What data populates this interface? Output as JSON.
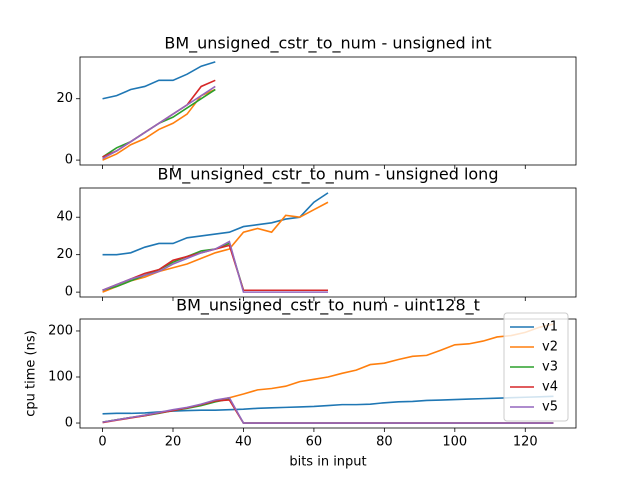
{
  "chart_data": [
    {
      "type": "line",
      "title": "BM_unsigned_cstr_to_num - unsigned int",
      "x": [
        0,
        4,
        8,
        12,
        16,
        20,
        24,
        28,
        32
      ],
      "series": [
        {
          "color": "#1f77b4",
          "values": [
            20,
            21,
            23,
            24,
            26,
            26,
            28,
            30.6,
            32
          ]
        },
        {
          "color": "#ff7f0e",
          "values": [
            0,
            2,
            5,
            7,
            10,
            12,
            15,
            21,
            23
          ]
        },
        {
          "color": "#2ca02c",
          "values": [
            1,
            4,
            6,
            9,
            12,
            14,
            17,
            20,
            23
          ]
        },
        {
          "color": "#d62728",
          "values": [
            1,
            3,
            6,
            9,
            12,
            15,
            18,
            24,
            26
          ]
        },
        {
          "color": "#9467bd",
          "values": [
            0.5,
            3,
            6,
            9,
            12,
            15,
            18,
            21,
            24
          ]
        }
      ],
      "xlim": [
        -6.4,
        134.4
      ],
      "ylim": [
        -1.6,
        33.6
      ],
      "xticks": [
        0,
        20,
        40,
        60,
        80,
        100,
        120
      ],
      "yticks": [
        0,
        20
      ]
    },
    {
      "type": "line",
      "title": "BM_unsigned_cstr_to_num - unsigned long",
      "x": [
        0,
        4,
        8,
        12,
        16,
        20,
        24,
        28,
        32,
        36,
        40,
        44,
        48,
        52,
        56,
        60,
        64
      ],
      "series": [
        {
          "color": "#1f77b4",
          "values": [
            20,
            20,
            21,
            24,
            26,
            26,
            29,
            30,
            31,
            32,
            35,
            36,
            37,
            39,
            40,
            48,
            53
          ]
        },
        {
          "color": "#ff7f0e",
          "values": [
            0,
            3,
            6,
            8,
            11,
            13,
            15,
            18,
            21,
            23,
            32,
            34,
            32,
            41,
            40,
            44,
            48
          ]
        },
        {
          "color": "#2ca02c",
          "values": [
            1,
            3,
            6,
            9,
            12,
            16,
            19,
            22,
            23,
            26,
            1,
            1,
            1,
            1,
            1,
            1,
            1
          ]
        },
        {
          "color": "#d62728",
          "values": [
            1,
            4,
            7,
            10,
            12,
            17,
            19,
            21,
            23,
            25,
            1,
            1,
            1,
            1,
            1,
            1,
            1
          ]
        },
        {
          "color": "#9467bd",
          "values": [
            1,
            4,
            7,
            9,
            11,
            15,
            18,
            21,
            23,
            27,
            0,
            0,
            0,
            0,
            0,
            0,
            0
          ]
        }
      ],
      "xlim": [
        -6.4,
        134.4
      ],
      "ylim": [
        -2.6,
        55.6
      ],
      "xticks": [
        0,
        20,
        40,
        60,
        80,
        100,
        120
      ],
      "yticks": [
        0,
        20,
        40
      ]
    },
    {
      "type": "line",
      "title": "BM_unsigned_cstr_to_num - uint128_t",
      "xlabel": "bits in input",
      "ylabel": "cpu time (ns)",
      "x": [
        0,
        4,
        8,
        12,
        16,
        20,
        24,
        28,
        32,
        36,
        40,
        44,
        48,
        52,
        56,
        60,
        64,
        68,
        72,
        76,
        80,
        84,
        88,
        92,
        96,
        100,
        104,
        108,
        112,
        116,
        120,
        124,
        128
      ],
      "series": [
        {
          "name": "v1",
          "color": "#1f77b4",
          "values": [
            20,
            21,
            21,
            22,
            24,
            26,
            27,
            28,
            28,
            29,
            30,
            32,
            33,
            34,
            35,
            36,
            38,
            40,
            40,
            41,
            44,
            46,
            47,
            49,
            50,
            51,
            52,
            53,
            54,
            55,
            56,
            57,
            58
          ]
        },
        {
          "name": "v2",
          "color": "#ff7f0e",
          "values": [
            2,
            7,
            12,
            17,
            22,
            28,
            33,
            40,
            48,
            55,
            63,
            72,
            75,
            80,
            90,
            95,
            100,
            108,
            115,
            127,
            130,
            138,
            145,
            147,
            158,
            170,
            172,
            178,
            187,
            190,
            197,
            208,
            215
          ]
        },
        {
          "name": "v3",
          "color": "#2ca02c",
          "values": [
            2,
            7,
            12,
            16,
            21,
            27,
            32,
            38,
            46,
            52,
            0,
            0,
            0,
            0,
            0,
            0,
            0,
            0,
            0,
            0,
            0,
            0,
            0,
            0,
            0,
            0,
            0,
            0,
            0,
            0,
            0,
            0,
            0
          ]
        },
        {
          "name": "v4",
          "color": "#d62728",
          "values": [
            1,
            6,
            11,
            16,
            22,
            27,
            33,
            40,
            48,
            50,
            0,
            0,
            0,
            0,
            0,
            0,
            0,
            0,
            0,
            0,
            0,
            0,
            0,
            0,
            0,
            0,
            0,
            0,
            0,
            0,
            0,
            0,
            0
          ]
        },
        {
          "name": "v5",
          "color": "#9467bd",
          "values": [
            2,
            7,
            12,
            17,
            23,
            29,
            34,
            41,
            50,
            55,
            0,
            0,
            0,
            0,
            0,
            0,
            0,
            0,
            0,
            0,
            0,
            0,
            0,
            0,
            0,
            0,
            0,
            0,
            0,
            0,
            0,
            0,
            0
          ]
        }
      ],
      "xlim": [
        -6.4,
        134.4
      ],
      "ylim": [
        -10.8,
        226
      ],
      "xticks": [
        0,
        20,
        40,
        60,
        80,
        100,
        120
      ],
      "yticks": [
        0,
        100,
        200
      ],
      "legend": "upper right"
    }
  ]
}
